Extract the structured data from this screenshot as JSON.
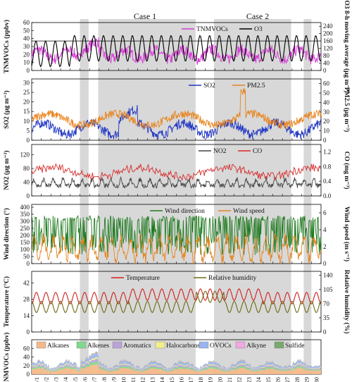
{
  "case_labels": [
    "Case 1",
    "Case 2"
  ],
  "colors": {
    "tnmvoc": "#d63bd6",
    "o3": "#000000",
    "so2": "#1f35c4",
    "pm25": "#e8831d",
    "no2": "#444444",
    "co": "#d62a2a",
    "wd": "#1e7a1e",
    "ws": "#e8831d",
    "temp": "#d11f1f",
    "rh": "#6b6b12",
    "shade": "#d8d8d8"
  },
  "chart_data": {
    "type": "line",
    "x_labels": [
      "6/1",
      "6/2",
      "6/3",
      "6/4",
      "6/5",
      "6/6",
      "6/7",
      "6/8",
      "6/9",
      "6/10",
      "6/11",
      "6/12",
      "6/13",
      "6/14",
      "6/15",
      "6/16",
      "6/17",
      "6/18",
      "6/19",
      "6/20",
      "6/21",
      "6/22",
      "6/23",
      "6/24",
      "6/25",
      "6/26",
      "6/27",
      "6/28",
      "6/29",
      "6/30"
    ],
    "shaded_periods": [
      [
        5.0,
        5.9
      ],
      [
        6.9,
        17.0
      ],
      [
        18.9,
        26.9
      ],
      [
        28.2,
        29.0
      ]
    ],
    "panels": [
      {
        "ylabel_left": "TNMVOCs (ppbv)",
        "ylabel_right": "O3 8-h moving average (μg m⁻³)",
        "ylim_left": [
          0,
          60
        ],
        "yticks_left": [
          "0",
          "10",
          "20",
          "30",
          "40",
          "50",
          "60"
        ],
        "ylim_right": [
          0,
          260
        ],
        "yticks_right": [
          "0",
          "40",
          "80",
          "120",
          "160",
          "200",
          "240"
        ],
        "series": [
          {
            "name": "TNMVOCs",
            "axis": "left"
          },
          {
            "name": "O3",
            "axis": "right"
          }
        ]
      },
      {
        "ylabel_left": "SO2 (μg m⁻³)",
        "ylabel_right": "PM2.5 (μg m⁻³)",
        "ylim_left": [
          0,
          32
        ],
        "yticks_left": [
          "0",
          "5",
          "10",
          "15",
          "20",
          "25",
          "30"
        ],
        "ylim_right": [
          0,
          65
        ],
        "yticks_right": [
          "0",
          "10",
          "20",
          "30",
          "40",
          "50",
          "60"
        ],
        "series": [
          {
            "name": "SO2",
            "axis": "left"
          },
          {
            "name": "PM2.5",
            "axis": "right"
          }
        ]
      },
      {
        "ylabel_left": "NO2 (μg m⁻³)",
        "ylabel_right": "CO (mg m⁻³)",
        "ylim_left": [
          0,
          150
        ],
        "yticks_left": [
          "0",
          "40",
          "80",
          "120"
        ],
        "ylim_right": [
          0,
          1.4
        ],
        "yticks_right": [
          "0.0",
          "0.4",
          "0.8",
          "1.2"
        ],
        "series": [
          {
            "name": "NO2",
            "axis": "left"
          },
          {
            "name": "CO",
            "axis": "right"
          }
        ]
      },
      {
        "ylabel_left": "Wind direction (°)",
        "ylabel_right": "Wind speed (m s⁻¹)",
        "ylim_left": [
          0,
          420
        ],
        "yticks_left": [
          "0",
          "50",
          "100",
          "150",
          "200",
          "250",
          "300",
          "350",
          "400"
        ],
        "ylim_right": [
          0,
          7
        ],
        "yticks_right": [
          "0",
          "2",
          "4",
          "6"
        ],
        "series": [
          {
            "name": "Wind direction",
            "axis": "left"
          },
          {
            "name": "Wind speed",
            "axis": "right"
          }
        ]
      },
      {
        "ylabel_left": "Temperature (°C)",
        "ylabel_right": "Relative humidity (%)",
        "ylim_left": [
          0,
          52
        ],
        "yticks_left": [
          "0",
          "14",
          "28",
          "42"
        ],
        "ylim_right": [
          0,
          150
        ],
        "yticks_right": [
          "0",
          "35",
          "70",
          "105",
          "140"
        ],
        "series": [
          {
            "name": "Temperature",
            "axis": "left"
          },
          {
            "name": "Relative humidity",
            "axis": "right"
          }
        ]
      },
      {
        "ylabel_left": "NMVOCs (ppbv)",
        "ylim_left": [
          0,
          80
        ],
        "yticks_left": [
          "0",
          "20",
          "40",
          "60"
        ],
        "series": [
          {
            "name": "Alkanes",
            "color": "#f4b98a"
          },
          {
            "name": "Alkenes",
            "color": "#7fd98c"
          },
          {
            "name": "Aromatics",
            "color": "#b9a3d9"
          },
          {
            "name": "Halocarbons",
            "color": "#f3f08a"
          },
          {
            "name": "OVOCs",
            "color": "#9ab5ef"
          },
          {
            "name": "Alkyne",
            "color": "#f2a8e3"
          },
          {
            "name": "Sulfide",
            "color": "#7aa86e"
          }
        ]
      }
    ]
  }
}
